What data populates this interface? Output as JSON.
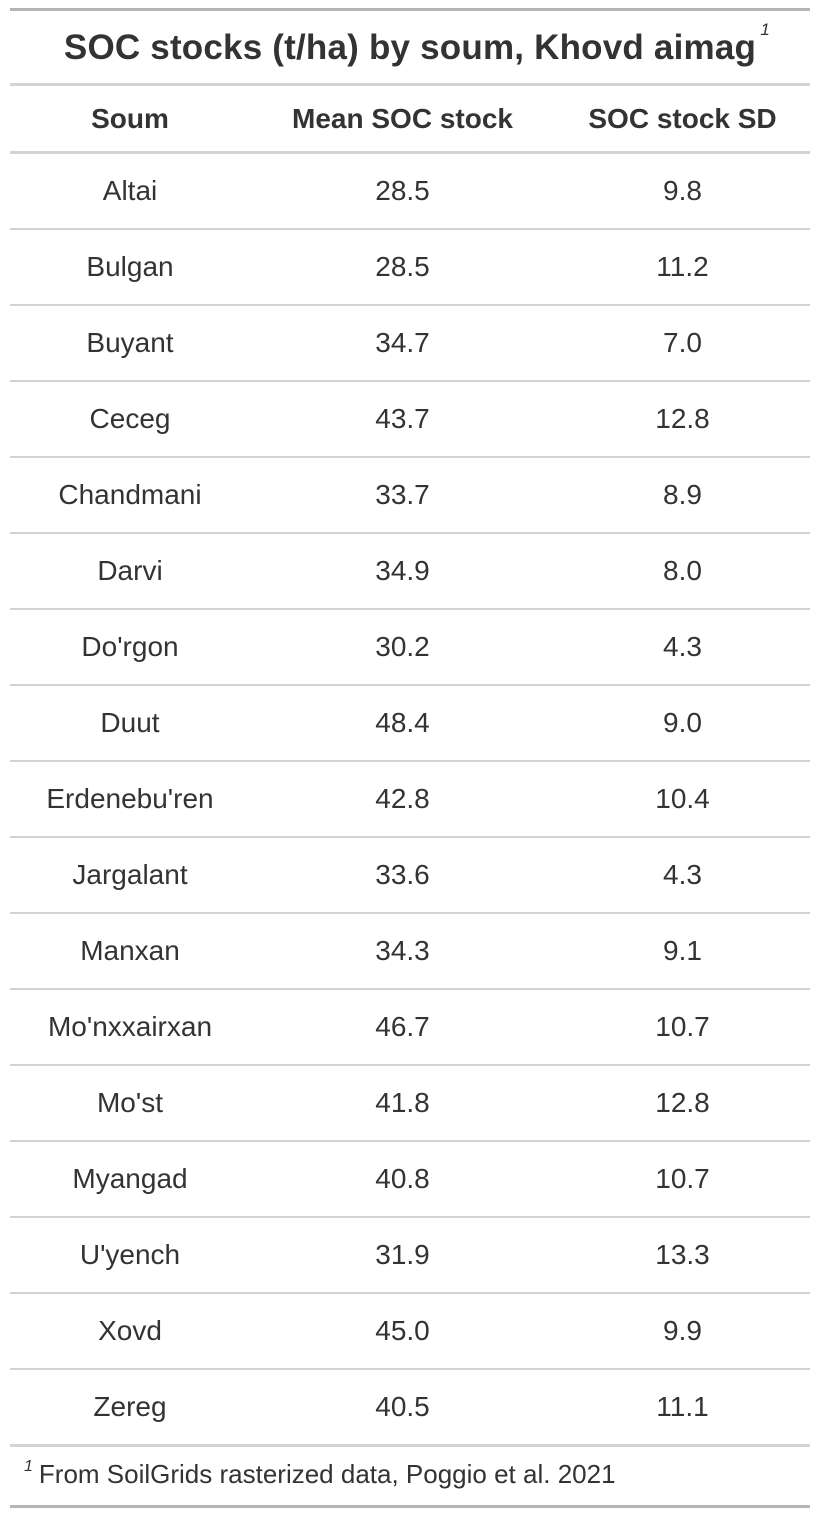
{
  "table": {
    "title": "SOC stocks (t/ha) by soum, Khovd aimag",
    "title_footnote_mark": "1",
    "columns": [
      "Soum",
      "Mean SOC stock",
      "SOC stock SD"
    ],
    "rows": [
      [
        "Altai",
        "28.5",
        "9.8"
      ],
      [
        "Bulgan",
        "28.5",
        "11.2"
      ],
      [
        "Buyant",
        "34.7",
        "7.0"
      ],
      [
        "Ceceg",
        "43.7",
        "12.8"
      ],
      [
        "Chandmani",
        "33.7",
        "8.9"
      ],
      [
        "Darvi",
        "34.9",
        "8.0"
      ],
      [
        "Do'rgon",
        "30.2",
        "4.3"
      ],
      [
        "Duut",
        "48.4",
        "9.0"
      ],
      [
        "Erdenebu'ren",
        "42.8",
        "10.4"
      ],
      [
        "Jargalant",
        "33.6",
        "4.3"
      ],
      [
        "Manxan",
        "34.3",
        "9.1"
      ],
      [
        "Mo'nxxairxan",
        "46.7",
        "10.7"
      ],
      [
        "Mo'st",
        "41.8",
        "12.8"
      ],
      [
        "Myangad",
        "40.8",
        "10.7"
      ],
      [
        "U'yench",
        "31.9",
        "13.3"
      ],
      [
        "Xovd",
        "45.0",
        "9.9"
      ],
      [
        "Zereg",
        "40.5",
        "11.1"
      ]
    ],
    "footnote_mark": "1",
    "footnote": "From SoilGrids rasterized data, Poggio et al. 2021"
  }
}
